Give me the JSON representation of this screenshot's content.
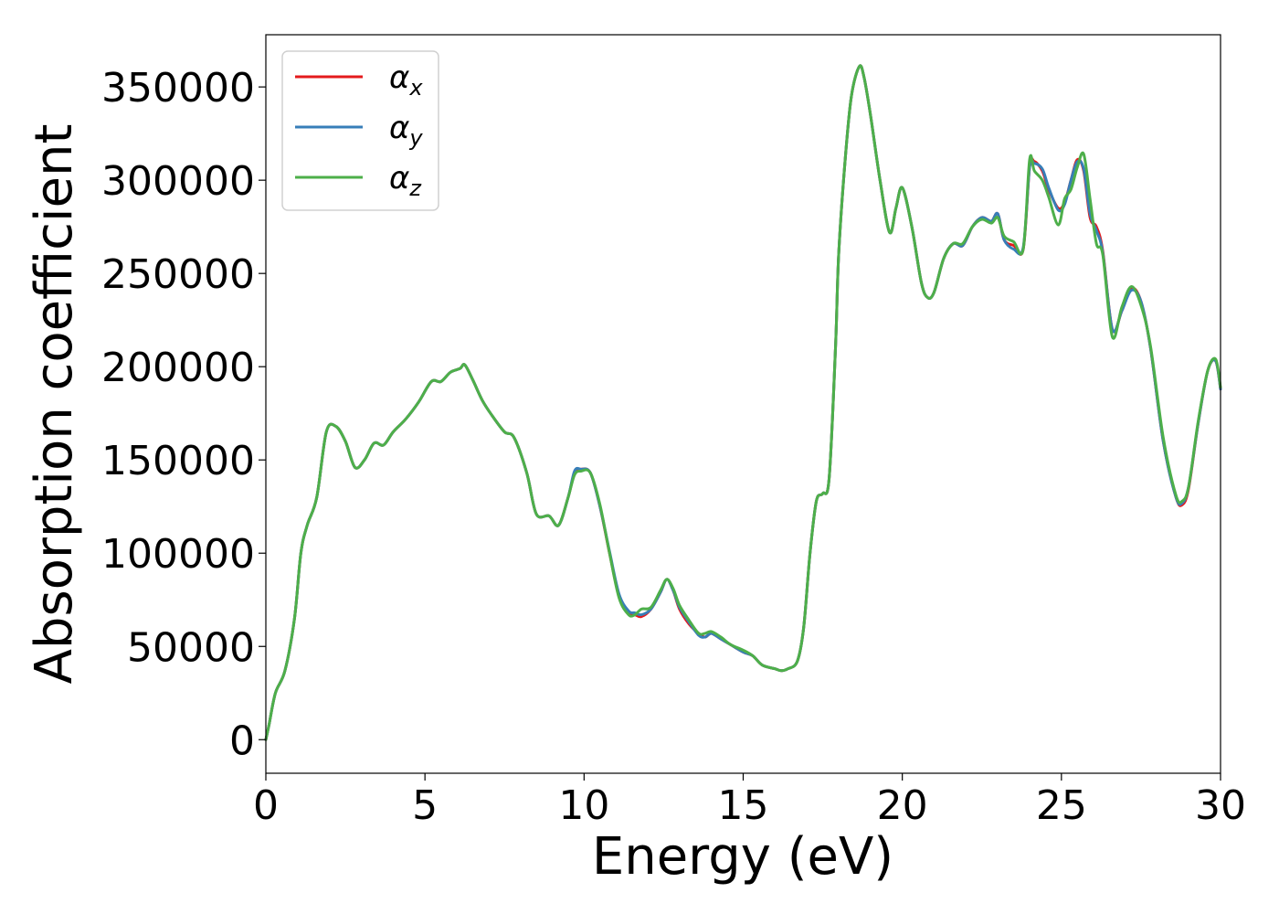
{
  "chart_data": {
    "type": "line",
    "title": "",
    "xlabel": "Energy (eV)",
    "ylabel": "Absorption coefficient",
    "xlim": [
      0,
      30
    ],
    "ylim": [
      -18000,
      378000
    ],
    "xticks": [
      0,
      5,
      10,
      15,
      20,
      25,
      30
    ],
    "yticks": [
      0,
      50000,
      100000,
      150000,
      200000,
      250000,
      300000,
      350000
    ],
    "grid": false,
    "legend_position": "top-left",
    "colors": {
      "alpha_x": "#e41a1c",
      "alpha_y": "#377eb8",
      "alpha_z": "#4daf4a"
    },
    "series": [
      {
        "name": "α_x",
        "symbol": "α",
        "subscript": "x",
        "color": "#e41a1c",
        "x": [
          0,
          0.1,
          0.3,
          0.6,
          0.9,
          1.1,
          1.3,
          1.6,
          1.9,
          2.2,
          2.5,
          2.8,
          3.1,
          3.4,
          3.7,
          4.0,
          4.4,
          4.8,
          5.2,
          5.5,
          5.8,
          6.1,
          6.25,
          6.5,
          6.8,
          7.1,
          7.5,
          7.8,
          8.2,
          8.5,
          8.9,
          9.2,
          9.5,
          9.7,
          9.9,
          10.2,
          10.5,
          10.8,
          11.1,
          11.4,
          11.6,
          11.8,
          12.1,
          12.4,
          12.6,
          12.8,
          13.0,
          13.3,
          13.6,
          13.8,
          14.0,
          14.3,
          14.6,
          15.0,
          15.3,
          15.6,
          16.0,
          16.2,
          16.4,
          16.7,
          16.9,
          17.1,
          17.3,
          17.5,
          17.7,
          17.9,
          18.0,
          18.2,
          18.4,
          18.65,
          18.8,
          19.0,
          19.3,
          19.6,
          19.8,
          20.0,
          20.3,
          20.6,
          20.8,
          21.0,
          21.3,
          21.6,
          21.9,
          22.2,
          22.5,
          22.8,
          23.0,
          23.2,
          23.5,
          23.8,
          24.0,
          24.15,
          24.4,
          24.6,
          24.9,
          25.1,
          25.3,
          25.5,
          25.7,
          25.9,
          26.1,
          26.3,
          26.6,
          26.9,
          27.2,
          27.5,
          27.8,
          28.2,
          28.6,
          28.8,
          29.0,
          29.3,
          29.6,
          29.85,
          30.0
        ],
        "y": [
          0,
          8000,
          25000,
          37000,
          65000,
          100000,
          115000,
          130000,
          165000,
          168000,
          160000,
          146000,
          150000,
          159000,
          158000,
          165000,
          172000,
          181000,
          192000,
          192000,
          197000,
          199000,
          201000,
          193000,
          182000,
          174000,
          165000,
          162000,
          143000,
          121000,
          120000,
          115000,
          130000,
          143000,
          145000,
          143000,
          125000,
          100000,
          77000,
          68000,
          67000,
          66000,
          70000,
          79000,
          86000,
          80000,
          70000,
          62000,
          57000,
          55000,
          57000,
          54000,
          51000,
          47000,
          45000,
          40000,
          38000,
          37000,
          38000,
          42000,
          60000,
          100000,
          128000,
          132000,
          140000,
          210000,
          260000,
          310000,
          345000,
          361000,
          355000,
          335000,
          300000,
          272000,
          285000,
          296000,
          275000,
          245000,
          237000,
          240000,
          258000,
          266000,
          265000,
          275000,
          280000,
          278000,
          282000,
          268000,
          265000,
          263000,
          307000,
          310000,
          305000,
          295000,
          285000,
          288000,
          300000,
          311000,
          305000,
          280000,
          275000,
          262000,
          220000,
          230000,
          242000,
          235000,
          210000,
          160000,
          130000,
          126000,
          135000,
          170000,
          198000,
          203000,
          188000
        ]
      },
      {
        "name": "α_y",
        "symbol": "α",
        "subscript": "y",
        "color": "#377eb8",
        "x": [
          0,
          0.1,
          0.3,
          0.6,
          0.9,
          1.1,
          1.3,
          1.6,
          1.9,
          2.2,
          2.5,
          2.8,
          3.1,
          3.4,
          3.7,
          4.0,
          4.4,
          4.8,
          5.2,
          5.5,
          5.8,
          6.1,
          6.25,
          6.5,
          6.8,
          7.1,
          7.5,
          7.8,
          8.2,
          8.5,
          8.9,
          9.2,
          9.5,
          9.7,
          9.9,
          10.2,
          10.5,
          10.8,
          11.1,
          11.4,
          11.6,
          11.8,
          12.1,
          12.4,
          12.6,
          12.8,
          13.0,
          13.3,
          13.6,
          13.8,
          14.0,
          14.3,
          14.6,
          15.0,
          15.3,
          15.6,
          16.0,
          16.2,
          16.4,
          16.7,
          16.9,
          17.1,
          17.3,
          17.5,
          17.7,
          17.9,
          18.0,
          18.2,
          18.4,
          18.65,
          18.8,
          19.0,
          19.3,
          19.6,
          19.8,
          20.0,
          20.3,
          20.6,
          20.8,
          21.0,
          21.3,
          21.6,
          21.9,
          22.2,
          22.5,
          22.8,
          23.0,
          23.2,
          23.5,
          23.8,
          24.0,
          24.15,
          24.4,
          24.6,
          24.9,
          25.1,
          25.3,
          25.5,
          25.7,
          25.9,
          26.1,
          26.3,
          26.6,
          26.9,
          27.2,
          27.5,
          27.8,
          28.2,
          28.6,
          28.8,
          29.0,
          29.3,
          29.6,
          29.85,
          30.0
        ],
        "y": [
          0,
          8000,
          25000,
          37000,
          65000,
          100000,
          115000,
          130000,
          165000,
          168000,
          160000,
          146000,
          150000,
          159000,
          158000,
          165000,
          172000,
          181000,
          192000,
          192000,
          197000,
          199000,
          201000,
          193000,
          182000,
          174000,
          165000,
          162000,
          143000,
          121000,
          120000,
          115000,
          130000,
          144000,
          145000,
          143000,
          125000,
          101000,
          78000,
          69000,
          68000,
          67000,
          70000,
          79000,
          86000,
          80000,
          71000,
          63000,
          56000,
          55000,
          57000,
          54000,
          51000,
          47000,
          45000,
          40000,
          38000,
          37000,
          38000,
          42000,
          60000,
          100000,
          128000,
          132000,
          140000,
          210000,
          260000,
          310000,
          345000,
          361000,
          355000,
          335000,
          300000,
          272000,
          285000,
          296000,
          275000,
          245000,
          237000,
          240000,
          258000,
          266000,
          265000,
          275000,
          280000,
          278000,
          282000,
          268000,
          263000,
          264000,
          307000,
          309000,
          306000,
          296000,
          284000,
          287000,
          300000,
          310000,
          306000,
          282000,
          273000,
          261000,
          220000,
          230000,
          241000,
          235000,
          210000,
          160000,
          130000,
          127000,
          136000,
          170000,
          198000,
          203000,
          188000
        ]
      },
      {
        "name": "α_z",
        "symbol": "α",
        "subscript": "z",
        "color": "#4daf4a",
        "x": [
          0,
          0.1,
          0.3,
          0.6,
          0.9,
          1.1,
          1.3,
          1.6,
          1.9,
          2.2,
          2.5,
          2.8,
          3.1,
          3.4,
          3.7,
          4.0,
          4.4,
          4.8,
          5.2,
          5.5,
          5.8,
          6.1,
          6.25,
          6.5,
          6.8,
          7.1,
          7.5,
          7.8,
          8.2,
          8.5,
          8.9,
          9.2,
          9.5,
          9.7,
          9.9,
          10.2,
          10.5,
          10.8,
          11.1,
          11.4,
          11.6,
          11.8,
          12.1,
          12.4,
          12.6,
          12.8,
          13.0,
          13.3,
          13.6,
          13.8,
          14.0,
          14.3,
          14.6,
          15.0,
          15.3,
          15.6,
          16.0,
          16.2,
          16.4,
          16.7,
          16.9,
          17.1,
          17.3,
          17.5,
          17.7,
          17.9,
          18.0,
          18.2,
          18.4,
          18.65,
          18.8,
          19.0,
          19.3,
          19.6,
          19.8,
          20.0,
          20.3,
          20.6,
          20.8,
          21.0,
          21.3,
          21.6,
          21.9,
          22.2,
          22.5,
          22.8,
          23.0,
          23.2,
          23.5,
          23.8,
          24.0,
          24.15,
          24.4,
          24.6,
          24.9,
          25.1,
          25.3,
          25.5,
          25.7,
          25.9,
          26.1,
          26.3,
          26.6,
          26.9,
          27.2,
          27.5,
          27.8,
          28.2,
          28.6,
          28.8,
          29.0,
          29.3,
          29.6,
          29.85,
          30.0
        ],
        "y": [
          0,
          8000,
          25000,
          37000,
          65000,
          100000,
          115000,
          130000,
          165000,
          168000,
          160000,
          146000,
          150000,
          159000,
          158000,
          165000,
          172000,
          181000,
          192000,
          192000,
          197000,
          199000,
          201000,
          193000,
          182000,
          174000,
          165000,
          162000,
          143000,
          121000,
          120000,
          115000,
          130000,
          142000,
          144000,
          143000,
          126000,
          100000,
          76000,
          67000,
          67000,
          70000,
          71000,
          80000,
          86000,
          81000,
          72000,
          64000,
          57000,
          57000,
          58000,
          55000,
          51000,
          48000,
          45000,
          40000,
          38000,
          37000,
          38000,
          42000,
          60000,
          100000,
          128000,
          132000,
          140000,
          210000,
          260000,
          310000,
          345000,
          361000,
          355000,
          335000,
          300000,
          272000,
          285000,
          296000,
          275000,
          245000,
          237000,
          240000,
          258000,
          266000,
          266000,
          275000,
          279000,
          277000,
          280000,
          270000,
          267000,
          263000,
          311000,
          305000,
          300000,
          291000,
          276000,
          290000,
          295000,
          307000,
          314000,
          290000,
          266000,
          260000,
          216000,
          232000,
          243000,
          233000,
          211000,
          162000,
          131000,
          128000,
          136000,
          171000,
          198000,
          204000,
          189000
        ]
      }
    ]
  }
}
